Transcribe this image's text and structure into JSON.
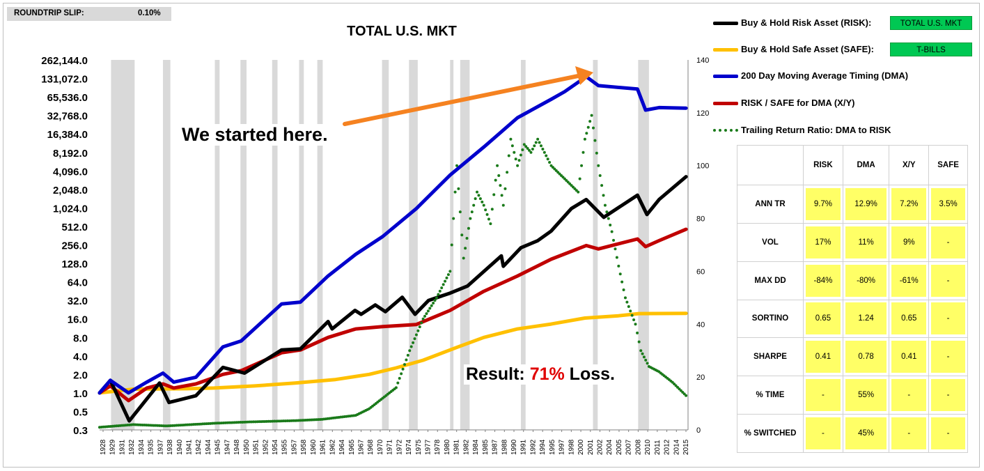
{
  "slip": {
    "label": "ROUNDTRIP SLIP:",
    "value": "0.10%"
  },
  "chart_data": {
    "type": "line",
    "title": "TOTAL U.S. MKT",
    "y_left_scale": "log2",
    "y_left_ticks": [
      "262,144.0",
      "131,072.0",
      "65,536.0",
      "32,768.0",
      "16,384.0",
      "8,192.0",
      "4,096.0",
      "2,048.0",
      "1,024.0",
      "512.0",
      "256.0",
      "128.0",
      "64.0",
      "32.0",
      "16.0",
      "8.0",
      "4.0",
      "2.0",
      "1.0",
      "0.5",
      "0.3"
    ],
    "y_right_ticks": [
      0,
      20,
      40,
      60,
      80,
      100,
      120,
      140
    ],
    "x_ticks": [
      "1928",
      "1929",
      "1931",
      "1932",
      "1934",
      "1935",
      "1937",
      "1938",
      "1940",
      "1941",
      "1942",
      "1944",
      "1945",
      "1947",
      "1948",
      "1950",
      "1951",
      "1952",
      "1954",
      "1955",
      "1957",
      "1958",
      "1960",
      "1961",
      "1962",
      "1964",
      "1965",
      "1967",
      "1968",
      "1970",
      "1971",
      "1972",
      "1974",
      "1975",
      "1977",
      "1978",
      "1980",
      "1981",
      "1982",
      "1984",
      "1985",
      "1987",
      "1988",
      "1990",
      "1991",
      "1992",
      "1994",
      "1995",
      "1997",
      "1998",
      "2000",
      "2001",
      "2002",
      "2004",
      "2005",
      "2007",
      "2008",
      "2010",
      "2011",
      "2012",
      "2014",
      "2015"
    ],
    "recessions": [
      [
        1929.7,
        1933.2
      ],
      [
        1937.4,
        1938.5
      ],
      [
        1945.1,
        1945.8
      ],
      [
        1948.9,
        1949.8
      ],
      [
        1953.6,
        1954.4
      ],
      [
        1957.6,
        1958.3
      ],
      [
        1960.3,
        1961.1
      ],
      [
        1969.9,
        1970.9
      ],
      [
        1973.9,
        1975.2
      ],
      [
        1980.0,
        1980.5
      ],
      [
        1981.5,
        1982.9
      ],
      [
        1990.5,
        1991.2
      ],
      [
        2001.2,
        2001.9
      ],
      [
        2007.9,
        2009.5
      ]
    ],
    "series": [
      {
        "name": "Buy & Hold Risk Asset (RISK)",
        "color": "#000000",
        "axis": "left",
        "points": [
          [
            1928,
            1
          ],
          [
            1929.6,
            1.6
          ],
          [
            1932.4,
            0.35
          ],
          [
            1936.9,
            1.45
          ],
          [
            1938.3,
            0.7
          ],
          [
            1942.3,
            0.9
          ],
          [
            1946.3,
            2.6
          ],
          [
            1949.5,
            2.1
          ],
          [
            1955,
            5
          ],
          [
            1957.8,
            5.2
          ],
          [
            1961.9,
            14.5
          ],
          [
            1962.5,
            11
          ],
          [
            1965.9,
            22
          ],
          [
            1966.8,
            19
          ],
          [
            1968.9,
            27
          ],
          [
            1970.4,
            21
          ],
          [
            1972.9,
            36
          ],
          [
            1974.8,
            19
          ],
          [
            1976.8,
            32
          ],
          [
            1980,
            42
          ],
          [
            1982.6,
            55
          ],
          [
            1987.6,
            170
          ],
          [
            1987.9,
            115
          ],
          [
            1990.5,
            230
          ],
          [
            1993,
            300
          ],
          [
            1995,
            430
          ],
          [
            1998,
            1000
          ],
          [
            2000.2,
            1400
          ],
          [
            2002.8,
            720
          ],
          [
            2007.8,
            1650
          ],
          [
            2009.2,
            800
          ],
          [
            2011,
            1400
          ],
          [
            2015,
            3300
          ]
        ]
      },
      {
        "name": "Buy & Hold Safe Asset (SAFE)",
        "color": "#ffc000",
        "axis": "left",
        "points": [
          [
            1928,
            1
          ],
          [
            1933,
            1.15
          ],
          [
            1941,
            1.17
          ],
          [
            1945,
            1.2
          ],
          [
            1951,
            1.3
          ],
          [
            1957,
            1.45
          ],
          [
            1963,
            1.65
          ],
          [
            1968,
            2
          ],
          [
            1972,
            2.55
          ],
          [
            1976,
            3.4
          ],
          [
            1981,
            5.5
          ],
          [
            1985,
            8
          ],
          [
            1990,
            11
          ],
          [
            1995,
            13.2
          ],
          [
            2000,
            16.5
          ],
          [
            2005,
            18
          ],
          [
            2008,
            19.5
          ],
          [
            2015,
            19.7
          ]
        ]
      },
      {
        "name": "200 Day Moving Average Timing (DMA)",
        "color": "#0000cc",
        "axis": "left",
        "points": [
          [
            1928,
            1
          ],
          [
            1929.6,
            1.6
          ],
          [
            1932.3,
            1.0
          ],
          [
            1935,
            1.5
          ],
          [
            1937.4,
            2.1
          ],
          [
            1939,
            1.5
          ],
          [
            1942.3,
            1.8
          ],
          [
            1946.3,
            5.6
          ],
          [
            1949,
            7
          ],
          [
            1955,
            28
          ],
          [
            1957.8,
            30
          ],
          [
            1961.9,
            80
          ],
          [
            1966,
            180
          ],
          [
            1970,
            350
          ],
          [
            1975,
            1000
          ],
          [
            1980,
            3500
          ],
          [
            1985,
            10000
          ],
          [
            1990,
            30000
          ],
          [
            1995,
            60000
          ],
          [
            1997,
            80000
          ],
          [
            2000.2,
            140000
          ],
          [
            2002,
            100000
          ],
          [
            2007.8,
            88000
          ],
          [
            2009,
            40000
          ],
          [
            2011,
            44000
          ],
          [
            2015,
            43000
          ]
        ]
      },
      {
        "name": "RISK / SAFE for DMA (X/Y)",
        "color": "#c00000",
        "axis": "left",
        "points": [
          [
            1928,
            1
          ],
          [
            1929.6,
            1.3
          ],
          [
            1932.3,
            0.75
          ],
          [
            1935,
            1.2
          ],
          [
            1937.4,
            1.4
          ],
          [
            1939,
            1.2
          ],
          [
            1942.3,
            1.4
          ],
          [
            1946.3,
            2.0
          ],
          [
            1949,
            2.3
          ],
          [
            1955,
            4.5
          ],
          [
            1957.8,
            5
          ],
          [
            1961.9,
            8
          ],
          [
            1966,
            11
          ],
          [
            1970,
            12
          ],
          [
            1975,
            13
          ],
          [
            1980,
            22
          ],
          [
            1985,
            45
          ],
          [
            1990,
            80
          ],
          [
            1995,
            150
          ],
          [
            2000.2,
            250
          ],
          [
            2002,
            220
          ],
          [
            2007.8,
            320
          ],
          [
            2009,
            240
          ],
          [
            2011,
            300
          ],
          [
            2015,
            460
          ]
        ]
      },
      {
        "name": "Trailing Return Ratio: DMA to RISK",
        "color": "#1a7a1a",
        "axis": "right",
        "style": "dotted",
        "points": [
          [
            1928,
            1
          ],
          [
            1933,
            2
          ],
          [
            1938,
            1.5
          ],
          [
            1945,
            2.5
          ],
          [
            1950,
            3
          ],
          [
            1957,
            3.5
          ],
          [
            1961,
            4
          ],
          [
            1966,
            5.5
          ],
          [
            1968,
            8
          ],
          [
            1970,
            12
          ],
          [
            1972,
            16
          ],
          [
            1974,
            30
          ],
          [
            1976,
            42
          ],
          [
            1978,
            50
          ],
          [
            1980,
            60
          ],
          [
            1981,
            100
          ],
          [
            1982,
            65
          ],
          [
            1983,
            80
          ],
          [
            1984,
            90
          ],
          [
            1985,
            85
          ],
          [
            1986,
            78
          ],
          [
            1987,
            100
          ],
          [
            1987.9,
            85
          ],
          [
            1989,
            110
          ],
          [
            1990,
            100
          ],
          [
            1991,
            108
          ],
          [
            1992,
            105
          ],
          [
            1993,
            110
          ],
          [
            1995,
            100
          ],
          [
            1997,
            95
          ],
          [
            1999,
            90
          ],
          [
            2000,
            110
          ],
          [
            2001,
            119
          ],
          [
            2002,
            100
          ],
          [
            2003,
            85
          ],
          [
            2004,
            75
          ],
          [
            2005,
            62
          ],
          [
            2006,
            50
          ],
          [
            2007.5,
            40
          ],
          [
            2008.3,
            30
          ],
          [
            2009.5,
            24
          ],
          [
            2011,
            22
          ],
          [
            2013,
            18
          ],
          [
            2015,
            13
          ]
        ]
      }
    ],
    "annotations": [
      "We started here.",
      "Result: ",
      "71%",
      " Loss."
    ]
  },
  "legend": [
    {
      "label": "Buy & Hold Risk Asset (RISK):",
      "tag": "TOTAL U.S. MKT"
    },
    {
      "label": "Buy & Hold Safe Asset (SAFE):",
      "tag": "T-BILLS"
    },
    {
      "label": "200 Day Moving Average Timing (DMA)"
    },
    {
      "label": "RISK / SAFE for DMA (X/Y)"
    },
    {
      "label": "Trailing Return Ratio: DMA to RISK"
    }
  ],
  "table": {
    "headers": [
      "RISK",
      "DMA",
      "X/Y",
      "SAFE"
    ],
    "rows": [
      {
        "label": "ANN TR",
        "cells": [
          "9.7%",
          "12.9%",
          "7.2%",
          "3.5%"
        ]
      },
      {
        "label": "VOL",
        "cells": [
          "17%",
          "11%",
          "9%",
          "-"
        ]
      },
      {
        "label": "MAX DD",
        "cells": [
          "-84%",
          "-80%",
          "-61%",
          "-"
        ]
      },
      {
        "label": "SORTINO",
        "cells": [
          "0.65",
          "1.24",
          "0.65",
          "-"
        ]
      },
      {
        "label": "SHARPE",
        "cells": [
          "0.41",
          "0.78",
          "0.41",
          "-"
        ]
      },
      {
        "label": "% TIME",
        "cells": [
          "-",
          "55%",
          "-",
          "-"
        ]
      },
      {
        "label": "% SWITCHED",
        "cells": [
          "-",
          "45%",
          "-",
          "-"
        ]
      }
    ]
  },
  "colors": {
    "tag_bg": "#00c853",
    "cell_bg": "#ffff66",
    "recession_bg": "#d9d9d9",
    "arrow": "#f58220",
    "loss_red": "#e00000"
  }
}
